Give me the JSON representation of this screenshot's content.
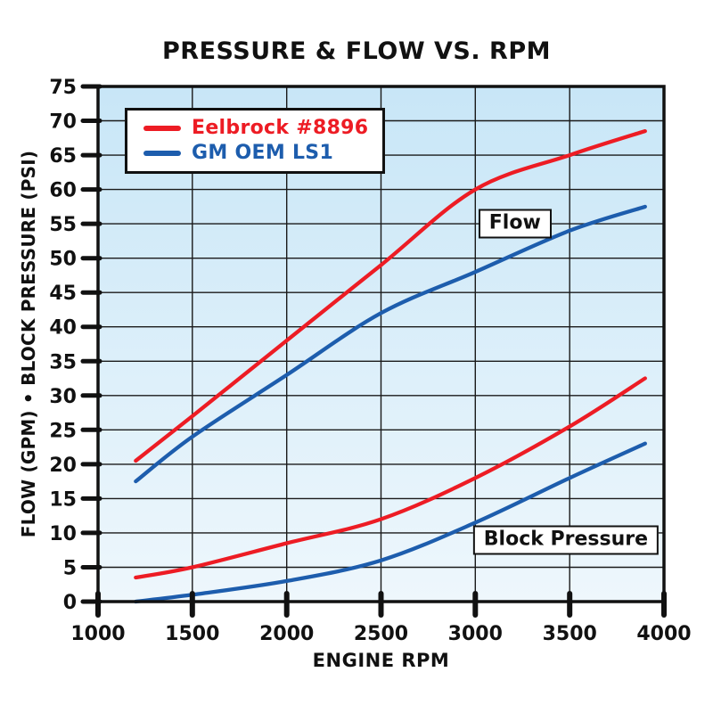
{
  "chart_data": {
    "type": "line",
    "title": "PRESSURE & FLOW VS. RPM",
    "xlabel": "ENGINE RPM",
    "ylabel": "FLOW (GPM) • BLOCK PRESSURE (PSI)",
    "xlim": [
      1000,
      4000
    ],
    "ylim": [
      0,
      75
    ],
    "x_tick_step": 500,
    "y_tick_step": 5,
    "grid": true,
    "x": [
      1200,
      1500,
      2000,
      2500,
      3000,
      3500,
      3900
    ],
    "series": [
      {
        "name": "Eelbrock #8896",
        "measure": "Flow",
        "color": "#ED1C24",
        "values": [
          20.5,
          27,
          38,
          49,
          60,
          65,
          68.5
        ]
      },
      {
        "name": "GM OEM LS1",
        "measure": "Flow",
        "color": "#1D5DAD",
        "values": [
          17.5,
          24,
          33,
          42,
          48,
          54,
          57.5
        ]
      },
      {
        "name": "Eelbrock #8896",
        "measure": "Block Pressure",
        "color": "#ED1C24",
        "values": [
          3.5,
          5,
          8.5,
          12,
          18,
          25.5,
          32.5
        ]
      },
      {
        "name": "GM OEM LS1",
        "measure": "Block Pressure",
        "color": "#1D5DAD",
        "values": [
          0,
          1,
          3,
          6,
          11.5,
          18,
          23
        ]
      }
    ],
    "legend": {
      "position": "top-left",
      "items": [
        {
          "label": "Eelbrock #8896",
          "color": "#ED1C24"
        },
        {
          "label": "GM OEM LS1",
          "color": "#1D5DAD"
        }
      ]
    },
    "annotations": [
      {
        "text": "Flow",
        "x": 3210,
        "y": 55
      },
      {
        "text": "Block Pressure",
        "x": 3480,
        "y": 9
      }
    ],
    "colors": {
      "plot_bg_top": "#C8E6F7",
      "plot_bg_bottom": "#EEF7FC",
      "grid": "#1A1A1A",
      "text": "#111111"
    }
  }
}
